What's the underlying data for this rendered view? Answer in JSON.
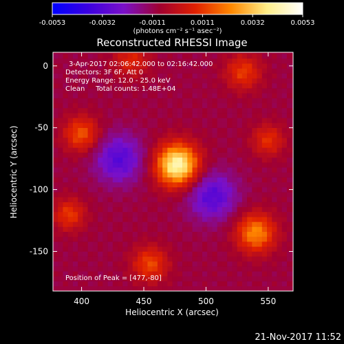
{
  "chart_data": {
    "type": "heatmap",
    "title": "Reconstructed RHESSI Image",
    "xlabel": "Heliocentric X (arcsec)",
    "ylabel": "Heliocentric Y (arcsec)",
    "xlim": [
      377,
      570
    ],
    "ylim": [
      -182,
      11
    ],
    "x_ticks": [
      400,
      450,
      500,
      550
    ],
    "y_ticks": [
      0,
      -50,
      -100,
      -150
    ],
    "colorbar": {
      "min": -0.0053,
      "max": 0.0053,
      "ticks": [
        "-0.0053",
        "-0.0032",
        "-0.0011",
        "0.0011",
        "0.0032",
        "0.0053"
      ],
      "unit_label": "(photons cm⁻² s⁻¹ asec⁻²)",
      "colors": [
        "#0000ff",
        "#3b00e0",
        "#7a10c8",
        "#a00030",
        "#e02000",
        "#ff8800",
        "#ffee88",
        "#ffffff"
      ]
    },
    "info_lines": [
      "3-Apr-2017 02:06:42.000 to 02:16:42.000",
      "Detectors: 3F 6F, Att 0",
      "Energy Range: 12.0 - 25.0 keV",
      "Clean     Total counts: 1.48E+04"
    ],
    "peak_text": "Position of Peak = [477,-80]",
    "peak": [
      477,
      -80
    ],
    "sources": [
      {
        "x": 477,
        "y": -80,
        "amp": 0.0053,
        "sigma": 12
      },
      {
        "x": 540,
        "y": -135,
        "amp": 0.0032,
        "sigma": 11
      },
      {
        "x": 400,
        "y": -55,
        "amp": 0.0024,
        "sigma": 10
      },
      {
        "x": 390,
        "y": -120,
        "amp": 0.002,
        "sigma": 9
      },
      {
        "x": 455,
        "y": -160,
        "amp": 0.0022,
        "sigma": 10
      },
      {
        "x": 530,
        "y": -5,
        "amp": 0.002,
        "sigma": 10
      },
      {
        "x": 440,
        "y": 5,
        "amp": 0.0016,
        "sigma": 10
      },
      {
        "x": 550,
        "y": -60,
        "amp": 0.0018,
        "sigma": 9
      }
    ],
    "negative_regions": [
      {
        "x": 430,
        "y": -75,
        "amp": -0.0022,
        "sigma": 14
      },
      {
        "x": 505,
        "y": -105,
        "amp": -0.0022,
        "sigma": 14
      }
    ]
  },
  "timestamp": "21-Nov-2017 11:52"
}
